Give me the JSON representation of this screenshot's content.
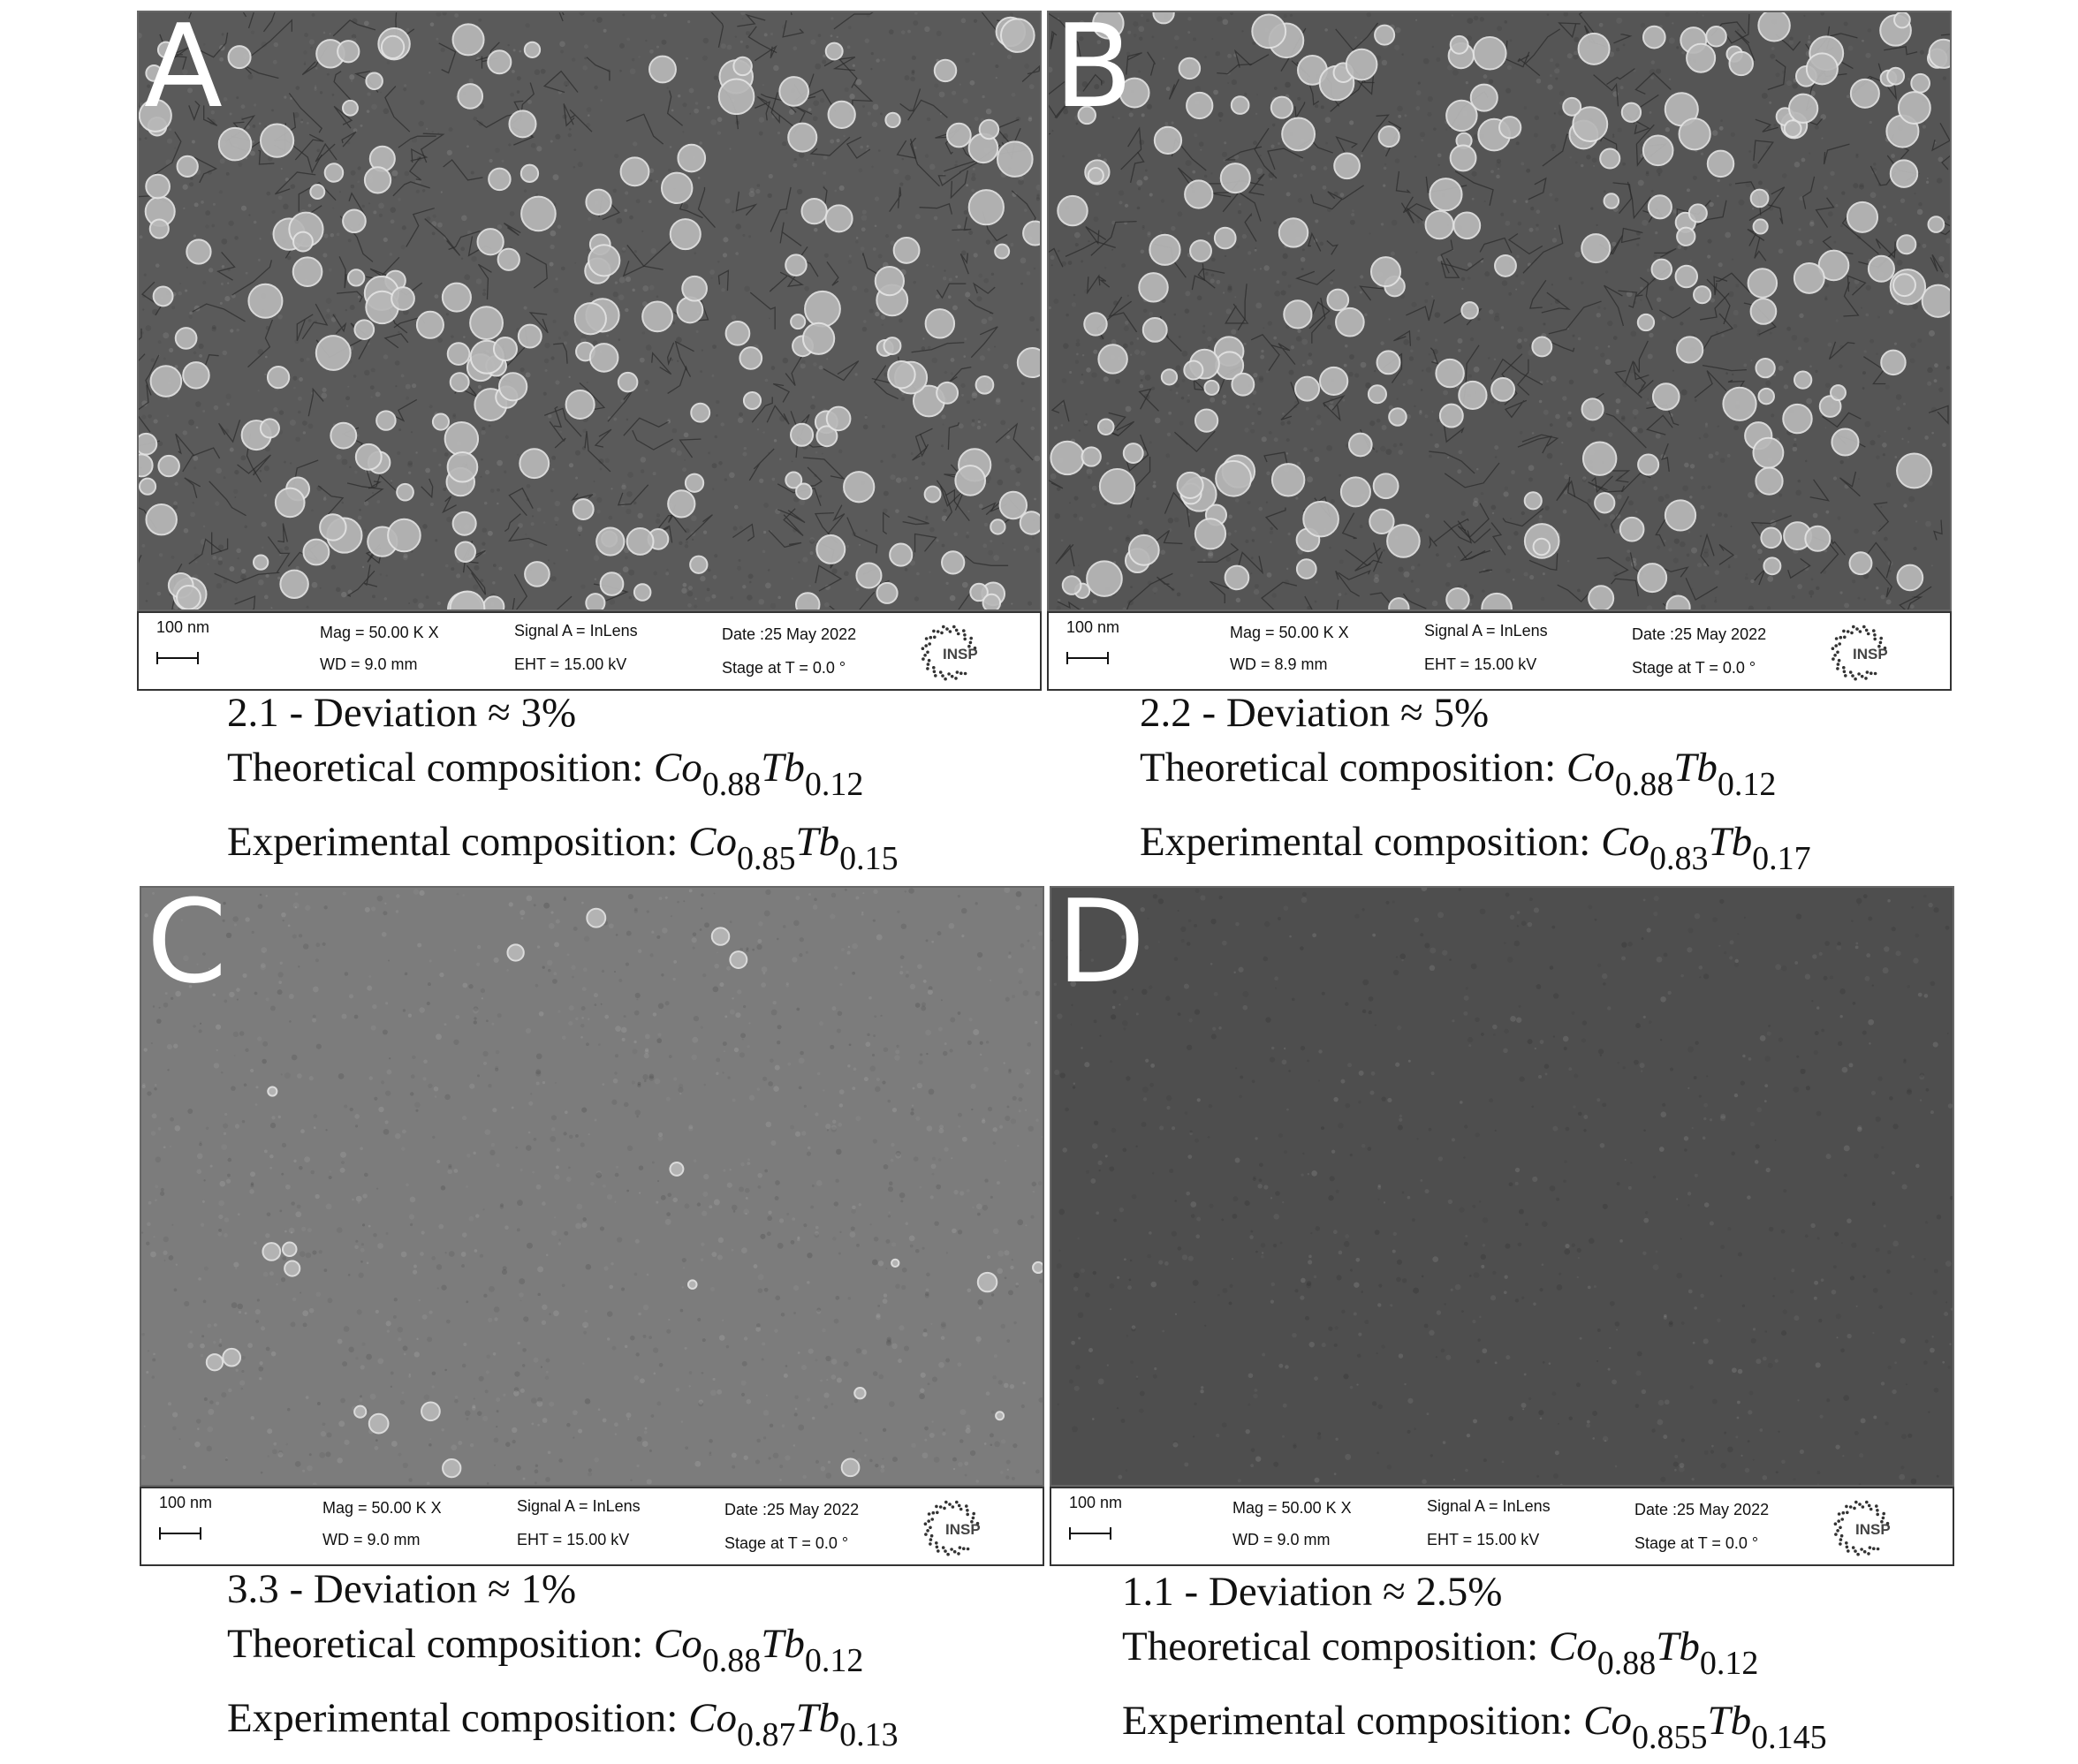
{
  "panels": [
    {
      "letter": "A",
      "micrograph": {
        "background": "#5a5a5a",
        "particles": "dense",
        "description_icon": "sem-micrograph"
      },
      "databar": {
        "scale": "100 nm",
        "mag": "Mag =  50.00 K X",
        "wd": "WD =  9.0 mm",
        "signal": "Signal A = InLens",
        "eht": "EHT = 15.00 kV",
        "date": "Date :25 May 2022",
        "stage": "Stage at T =   0.0 °",
        "logo_text": "INSP"
      },
      "caption": {
        "deviation": "2.1 - Deviation ≈ 3%",
        "theoretical_label": "Theoretical composition: ",
        "theoretical": {
          "el1": "Co",
          "x1": "0.88",
          "el2": "Tb",
          "x2": "0.12"
        },
        "experimental_label": "Experimental composition: ",
        "experimental": {
          "el1": "Co",
          "x1": "0.85",
          "el2": "Tb",
          "x2": "0.15"
        }
      }
    },
    {
      "letter": "B",
      "micrograph": {
        "background": "#555555",
        "particles": "dense",
        "description_icon": "sem-micrograph"
      },
      "databar": {
        "scale": "100 nm",
        "mag": "Mag =   50.00 K X",
        "wd": "WD =  8.9 mm",
        "signal": "Signal A = InLens",
        "eht": "EHT = 15.00 kV",
        "date": "Date :25 May 2022",
        "stage": "Stage at T =   0.0 °",
        "logo_text": "INSP"
      },
      "caption": {
        "deviation": "2.2 - Deviation ≈ 5%",
        "theoretical_label": "Theoretical composition: ",
        "theoretical": {
          "el1": "Co",
          "x1": "0.88",
          "el2": "Tb",
          "x2": "0.12"
        },
        "experimental_label": "Experimental composition: ",
        "experimental": {
          "el1": "Co",
          "x1": "0.83",
          "el2": "Tb",
          "x2": "0.17"
        }
      }
    },
    {
      "letter": "C",
      "micrograph": {
        "background": "#7c7c7c",
        "particles": "sparse",
        "description_icon": "sem-micrograph"
      },
      "databar": {
        "scale": "100 nm",
        "mag": "Mag =   50.00 K X",
        "wd": "WD =  9.0 mm",
        "signal": "Signal A = InLens",
        "eht": "EHT = 15.00 kV",
        "date": "Date :25 May 2022",
        "stage": "Stage at T =   0.0 °",
        "logo_text": "INSP"
      },
      "caption": {
        "deviation": "3.3 - Deviation ≈ 1%",
        "theoretical_label": "Theoretical composition: ",
        "theoretical": {
          "el1": "Co",
          "x1": "0.88",
          "el2": "Tb",
          "x2": "0.12"
        },
        "experimental_label": "Experimental composition: ",
        "experimental": {
          "el1": "Co",
          "x1": "0.87",
          "el2": "Tb",
          "x2": "0.13"
        }
      }
    },
    {
      "letter": "D",
      "micrograph": {
        "background": "#4e4e4e",
        "particles": "none",
        "description_icon": "sem-micrograph"
      },
      "databar": {
        "scale": "100 nm",
        "mag": "Mag =   50.00 K X",
        "wd": "WD =  9.0 mm",
        "signal": "Signal A = InLens",
        "eht": "EHT = 15.00 kV",
        "date": "Date :25 May 2022",
        "stage": "Stage at T =   0.0 °",
        "logo_text": "INSP"
      },
      "caption": {
        "deviation": "1.1 - Deviation ≈ 2.5%",
        "theoretical_label": "Theoretical composition: ",
        "theoretical": {
          "el1": "Co",
          "x1": "0.88",
          "el2": "Tb",
          "x2": "0.12"
        },
        "experimental_label": "Experimental composition: ",
        "experimental": {
          "el1": "Co",
          "x1": "0.855",
          "el2": "Tb",
          "x2": "0.145"
        }
      }
    }
  ]
}
